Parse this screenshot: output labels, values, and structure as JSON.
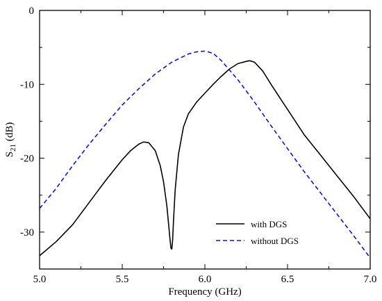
{
  "chart_data": {
    "type": "line",
    "xlabel": "Frequency (GHz)",
    "ylabel": {
      "prefix": "S",
      "subscript": "21",
      "suffix": " (dB)"
    },
    "xlim": [
      5.0,
      7.0
    ],
    "ylim": [
      -35,
      0
    ],
    "xticks": [
      {
        "value": 5.0,
        "label": "5.0"
      },
      {
        "value": 5.5,
        "label": "5.5"
      },
      {
        "value": 6.0,
        "label": "6.0"
      },
      {
        "value": 6.5,
        "label": "6.5"
      },
      {
        "value": 7.0,
        "label": "7.0"
      }
    ],
    "yticks": [
      {
        "value": 0,
        "label": "0"
      },
      {
        "value": -10,
        "label": "-10"
      },
      {
        "value": -20,
        "label": "-20"
      },
      {
        "value": -30,
        "label": "-30"
      }
    ],
    "grid": false,
    "legend_position": "bottom-right",
    "series": [
      {
        "name": "with DGS",
        "color": "#000000",
        "dash": "solid",
        "x": [
          5.0,
          5.1,
          5.2,
          5.3,
          5.4,
          5.5,
          5.55,
          5.6,
          5.63,
          5.66,
          5.7,
          5.73,
          5.75,
          5.77,
          5.78,
          5.79,
          5.795,
          5.8,
          5.805,
          5.81,
          5.82,
          5.84,
          5.87,
          5.9,
          5.95,
          6.0,
          6.05,
          6.1,
          6.15,
          6.2,
          6.25,
          6.27,
          6.3,
          6.35,
          6.4,
          6.5,
          6.6,
          6.7,
          6.8,
          6.9,
          7.0
        ],
        "y": [
          -33.2,
          -31.3,
          -29.0,
          -26.0,
          -23.0,
          -20.2,
          -19.0,
          -18.1,
          -17.8,
          -17.9,
          -19.0,
          -21.0,
          -23.2,
          -26.5,
          -28.8,
          -31.2,
          -32.2,
          -32.3,
          -31.0,
          -28.5,
          -24.3,
          -19.5,
          -15.8,
          -14.0,
          -12.4,
          -11.2,
          -10.0,
          -8.9,
          -7.9,
          -7.2,
          -6.9,
          -6.8,
          -7.0,
          -8.2,
          -10.0,
          -13.4,
          -16.8,
          -19.6,
          -22.4,
          -25.2,
          -28.2
        ]
      },
      {
        "name": "without DGS",
        "color": "#0a14e0",
        "dash": "dashed",
        "x": [
          5.0,
          5.1,
          5.2,
          5.3,
          5.4,
          5.5,
          5.6,
          5.7,
          5.8,
          5.9,
          5.95,
          6.0,
          6.05,
          6.1,
          6.2,
          6.3,
          6.4,
          6.5,
          6.6,
          6.7,
          6.8,
          6.9,
          7.0
        ],
        "y": [
          -26.8,
          -24.1,
          -21.0,
          -18.1,
          -15.4,
          -12.8,
          -10.6,
          -8.6,
          -7.0,
          -5.9,
          -5.6,
          -5.5,
          -5.8,
          -6.8,
          -9.4,
          -12.4,
          -15.6,
          -18.7,
          -21.8,
          -24.7,
          -27.6,
          -30.5,
          -33.5
        ]
      }
    ]
  }
}
